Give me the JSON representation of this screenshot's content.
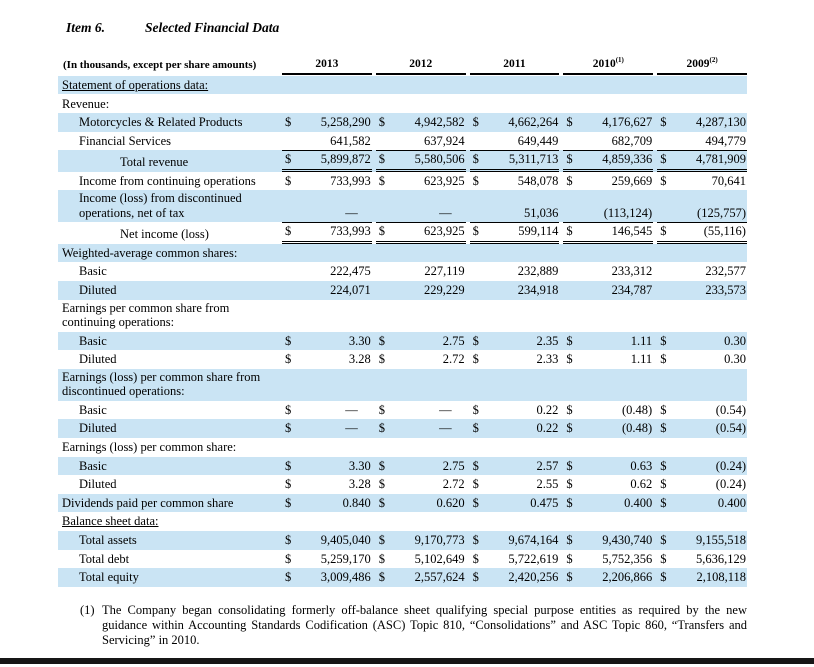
{
  "page": {
    "item_label": "Item 6.",
    "title": "Selected Financial Data"
  },
  "colors": {
    "row_highlight": "#cae4f4",
    "text": "#000000",
    "bottom_bar": "#161616"
  },
  "table": {
    "header": {
      "caption": "(In thousands, except per share amounts)",
      "years": [
        {
          "label": "2013",
          "sup": ""
        },
        {
          "label": "2012",
          "sup": ""
        },
        {
          "label": "2011",
          "sup": ""
        },
        {
          "label": "2010",
          "sup": "(1)"
        },
        {
          "label": "2009",
          "sup": "(2)"
        }
      ]
    },
    "rows": [
      {
        "label": "Statement of operations data:",
        "indent": 0,
        "shaded": true,
        "u": true,
        "total": false,
        "cells": []
      },
      {
        "label": "Revenue:",
        "indent": 0,
        "shaded": false,
        "u": false,
        "total": false,
        "cells": []
      },
      {
        "label": "Motorcycles & Related Products",
        "indent": 1,
        "shaded": true,
        "u": false,
        "total": false,
        "cells": [
          {
            "d": "$",
            "v": "5,258,290"
          },
          {
            "d": "$",
            "v": "4,942,582"
          },
          {
            "d": "$",
            "v": "4,662,264"
          },
          {
            "d": "$",
            "v": "4,176,627"
          },
          {
            "d": "$",
            "v": "4,287,130"
          }
        ]
      },
      {
        "label": "Financial Services",
        "indent": 1,
        "shaded": false,
        "u": false,
        "total": false,
        "cells": [
          {
            "d": "",
            "v": "641,582"
          },
          {
            "d": "",
            "v": "637,924"
          },
          {
            "d": "",
            "v": "649,449"
          },
          {
            "d": "",
            "v": "682,709"
          },
          {
            "d": "",
            "v": "494,779"
          }
        ]
      },
      {
        "label": "Total revenue",
        "indent": 2,
        "shaded": true,
        "u": false,
        "total": true,
        "cells": [
          {
            "d": "$",
            "v": "5,899,872"
          },
          {
            "d": "$",
            "v": "5,580,506"
          },
          {
            "d": "$",
            "v": "5,311,713"
          },
          {
            "d": "$",
            "v": "4,859,336"
          },
          {
            "d": "$",
            "v": "4,781,909"
          }
        ]
      },
      {
        "label": "Income from continuing operations",
        "indent": 1,
        "shaded": false,
        "u": false,
        "total": false,
        "cells": [
          {
            "d": "$",
            "v": "733,993"
          },
          {
            "d": "$",
            "v": "623,925"
          },
          {
            "d": "$",
            "v": "548,078"
          },
          {
            "d": "$",
            "v": "259,669"
          },
          {
            "d": "$",
            "v": "70,641"
          }
        ]
      },
      {
        "label": "Income (loss) from discontinued operations, net of tax",
        "indent": 1,
        "shaded": true,
        "u": false,
        "total": false,
        "cells": [
          {
            "d": "",
            "v": "—",
            "dash": true
          },
          {
            "d": "",
            "v": "—",
            "dash": true
          },
          {
            "d": "",
            "v": "51,036"
          },
          {
            "d": "",
            "v": "(113,124)"
          },
          {
            "d": "",
            "v": "(125,757)"
          }
        ]
      },
      {
        "label": "Net income (loss)",
        "indent": 2,
        "shaded": false,
        "u": false,
        "total": true,
        "cells": [
          {
            "d": "$",
            "v": "733,993"
          },
          {
            "d": "$",
            "v": "623,925"
          },
          {
            "d": "$",
            "v": "599,114"
          },
          {
            "d": "$",
            "v": "146,545"
          },
          {
            "d": "$",
            "v": "(55,116)"
          }
        ]
      },
      {
        "label": "Weighted-average common shares:",
        "indent": 0,
        "shaded": true,
        "u": false,
        "total": false,
        "cells": []
      },
      {
        "label": "Basic",
        "indent": 1,
        "shaded": false,
        "u": false,
        "total": false,
        "cells": [
          {
            "d": "",
            "v": "222,475"
          },
          {
            "d": "",
            "v": "227,119"
          },
          {
            "d": "",
            "v": "232,889"
          },
          {
            "d": "",
            "v": "233,312"
          },
          {
            "d": "",
            "v": "232,577"
          }
        ]
      },
      {
        "label": "Diluted",
        "indent": 1,
        "shaded": true,
        "u": false,
        "total": false,
        "cells": [
          {
            "d": "",
            "v": "224,071"
          },
          {
            "d": "",
            "v": "229,229"
          },
          {
            "d": "",
            "v": "234,918"
          },
          {
            "d": "",
            "v": "234,787"
          },
          {
            "d": "",
            "v": "233,573"
          }
        ]
      },
      {
        "label": "Earnings per common share from continuing operations:",
        "indent": 0,
        "shaded": false,
        "u": false,
        "total": false,
        "cells": []
      },
      {
        "label": "Basic",
        "indent": 1,
        "shaded": true,
        "u": false,
        "total": false,
        "cells": [
          {
            "d": "$",
            "v": "3.30"
          },
          {
            "d": "$",
            "v": "2.75"
          },
          {
            "d": "$",
            "v": "2.35"
          },
          {
            "d": "$",
            "v": "1.11"
          },
          {
            "d": "$",
            "v": "0.30"
          }
        ]
      },
      {
        "label": "Diluted",
        "indent": 1,
        "shaded": false,
        "u": false,
        "total": false,
        "cells": [
          {
            "d": "$",
            "v": "3.28"
          },
          {
            "d": "$",
            "v": "2.72"
          },
          {
            "d": "$",
            "v": "2.33"
          },
          {
            "d": "$",
            "v": "1.11"
          },
          {
            "d": "$",
            "v": "0.30"
          }
        ]
      },
      {
        "label": "Earnings (loss) per common share from discontinued operations:",
        "indent": 0,
        "shaded": true,
        "u": false,
        "total": false,
        "cells": []
      },
      {
        "label": "Basic",
        "indent": 1,
        "shaded": false,
        "u": false,
        "total": false,
        "cells": [
          {
            "d": "$",
            "v": "—",
            "dash": true
          },
          {
            "d": "$",
            "v": "—",
            "dash": true
          },
          {
            "d": "$",
            "v": "0.22"
          },
          {
            "d": "$",
            "v": "(0.48)"
          },
          {
            "d": "$",
            "v": "(0.54)"
          }
        ]
      },
      {
        "label": "Diluted",
        "indent": 1,
        "shaded": true,
        "u": false,
        "total": false,
        "cells": [
          {
            "d": "$",
            "v": "—",
            "dash": true
          },
          {
            "d": "$",
            "v": "—",
            "dash": true
          },
          {
            "d": "$",
            "v": "0.22"
          },
          {
            "d": "$",
            "v": "(0.48)"
          },
          {
            "d": "$",
            "v": "(0.54)"
          }
        ]
      },
      {
        "label": "Earnings (loss) per common share:",
        "indent": 0,
        "shaded": false,
        "u": false,
        "total": false,
        "cells": []
      },
      {
        "label": "Basic",
        "indent": 1,
        "shaded": true,
        "u": false,
        "total": false,
        "cells": [
          {
            "d": "$",
            "v": "3.30"
          },
          {
            "d": "$",
            "v": "2.75"
          },
          {
            "d": "$",
            "v": "2.57"
          },
          {
            "d": "$",
            "v": "0.63"
          },
          {
            "d": "$",
            "v": "(0.24)"
          }
        ]
      },
      {
        "label": "Diluted",
        "indent": 1,
        "shaded": false,
        "u": false,
        "total": false,
        "cells": [
          {
            "d": "$",
            "v": "3.28"
          },
          {
            "d": "$",
            "v": "2.72"
          },
          {
            "d": "$",
            "v": "2.55"
          },
          {
            "d": "$",
            "v": "0.62"
          },
          {
            "d": "$",
            "v": "(0.24)"
          }
        ]
      },
      {
        "label": "Dividends paid per common share",
        "indent": 0,
        "shaded": true,
        "u": false,
        "total": false,
        "cells": [
          {
            "d": "$",
            "v": "0.840"
          },
          {
            "d": "$",
            "v": "0.620"
          },
          {
            "d": "$",
            "v": "0.475"
          },
          {
            "d": "$",
            "v": "0.400"
          },
          {
            "d": "$",
            "v": "0.400"
          }
        ]
      },
      {
        "label": "Balance sheet data:",
        "indent": 0,
        "shaded": false,
        "u": true,
        "total": false,
        "cells": []
      },
      {
        "label": "Total assets",
        "indent": 1,
        "shaded": true,
        "u": false,
        "total": false,
        "cells": [
          {
            "d": "$",
            "v": "9,405,040"
          },
          {
            "d": "$",
            "v": "9,170,773"
          },
          {
            "d": "$",
            "v": "9,674,164"
          },
          {
            "d": "$",
            "v": "9,430,740"
          },
          {
            "d": "$",
            "v": "9,155,518"
          }
        ]
      },
      {
        "label": "Total debt",
        "indent": 1,
        "shaded": false,
        "u": false,
        "total": false,
        "cells": [
          {
            "d": "$",
            "v": "5,259,170"
          },
          {
            "d": "$",
            "v": "5,102,649"
          },
          {
            "d": "$",
            "v": "5,722,619"
          },
          {
            "d": "$",
            "v": "5,752,356"
          },
          {
            "d": "$",
            "v": "5,636,129"
          }
        ]
      },
      {
        "label": "Total equity",
        "indent": 1,
        "shaded": true,
        "u": false,
        "total": false,
        "cells": [
          {
            "d": "$",
            "v": "3,009,486"
          },
          {
            "d": "$",
            "v": "2,557,624"
          },
          {
            "d": "$",
            "v": "2,420,256"
          },
          {
            "d": "$",
            "v": "2,206,866"
          },
          {
            "d": "$",
            "v": "2,108,118"
          }
        ]
      }
    ]
  },
  "footnotes": [
    {
      "marker": "(1)",
      "text": "The Company began consolidating formerly off-balance sheet qualifying special purpose entities as required by the new guidance within Accounting Standards Codification (ASC) Topic 810, “Consolidations” and ASC Topic 860, “Transfers and Servicing” in 2010."
    }
  ]
}
